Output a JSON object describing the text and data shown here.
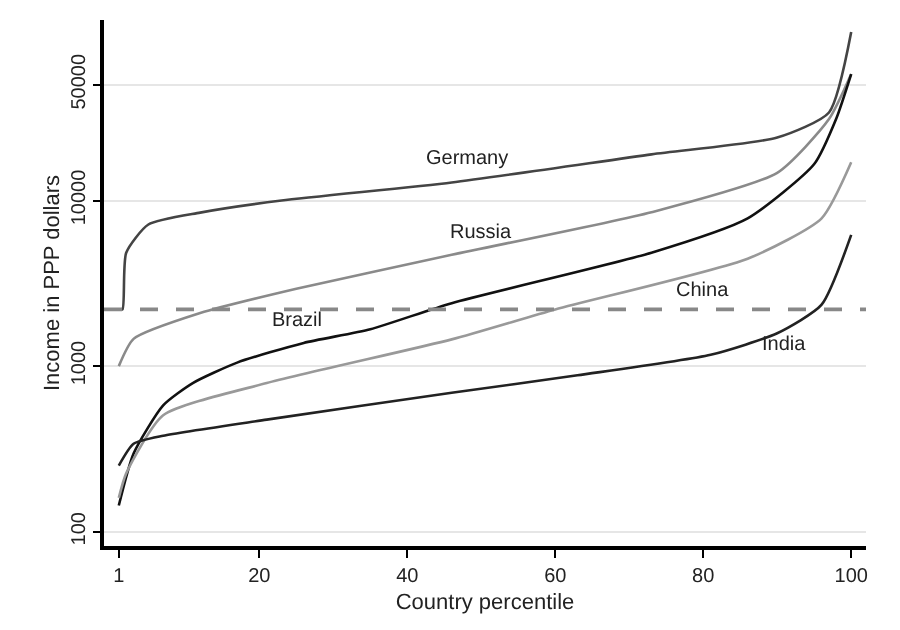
{
  "chart_data": {
    "type": "line",
    "xlabel": "Country percentile",
    "ylabel": "Income in PPP dollars",
    "log": "y",
    "xlim": [
      -1,
      102
    ],
    "ylim": [
      82,
      123000
    ],
    "xticks": [
      1,
      20,
      40,
      60,
      80,
      100
    ],
    "yticks": [
      100,
      1000,
      10000,
      50000
    ],
    "grid": "y",
    "marker": "none",
    "line_style": "solid",
    "series": [
      {
        "name": "Germany",
        "color": "#444444",
        "x": [
          1,
          1.5,
          2,
          5,
          12,
          23,
          46,
          73,
          90,
          97,
          100
        ],
        "values": [
          2200,
          2200,
          4840,
          7160,
          8450,
          10000,
          12850,
          19000,
          24000,
          34000,
          104000
        ]
      },
      {
        "name": "Russia",
        "color": "#8a8a8a",
        "x": [
          1,
          3,
          12,
          25,
          46,
          73,
          90,
          97,
          100
        ],
        "values": [
          1000,
          1460,
          2090,
          2930,
          4700,
          8500,
          14700,
          31000,
          58000
        ]
      },
      {
        "name": "Brazil",
        "color": "#111111",
        "x": [
          1,
          3,
          7,
          11,
          17,
          26,
          35,
          46,
          73,
          86,
          95,
          98,
          100
        ],
        "values": [
          144,
          297,
          580,
          790,
          1050,
          1380,
          1670,
          2400,
          4840,
          7800,
          16600,
          31400,
          58000
        ]
      },
      {
        "name": "China",
        "color": "#999999",
        "x": [
          1,
          2,
          7,
          21,
          46,
          60,
          86,
          96,
          100
        ],
        "values": [
          160,
          225,
          505,
          790,
          1450,
          2200,
          4450,
          7800,
          17000
        ]
      },
      {
        "name": "India",
        "color": "#222222",
        "x": [
          1,
          3,
          7,
          21,
          46,
          63,
          81,
          90,
          96,
          100
        ],
        "values": [
          251,
          340,
          380,
          475,
          690,
          880,
          1170,
          1580,
          2350,
          6200
        ]
      }
    ],
    "ref_lines": [
      {
        "axis": "y",
        "value": 2200,
        "color": "#888888",
        "line_style": "dashed"
      }
    ]
  }
}
